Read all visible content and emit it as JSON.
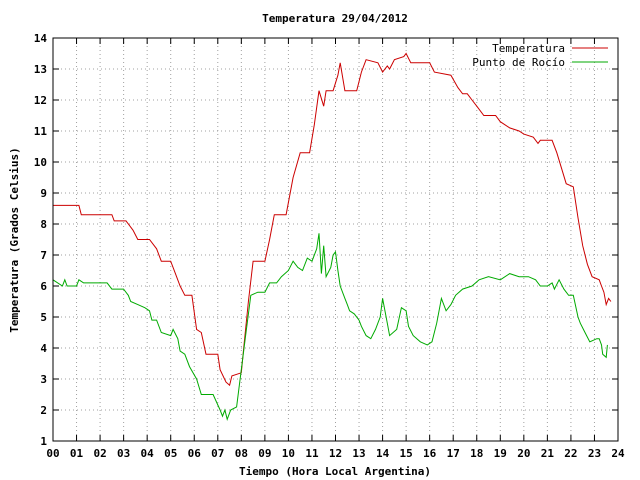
{
  "chart_data": {
    "type": "line",
    "title": "Temperatura 29/04/2012",
    "xlabel": "Tiempo (Hora Local Argentina)",
    "ylabel": "Temperatura (Grados Celsius)",
    "xlim": [
      0,
      24
    ],
    "ylim": [
      1,
      14
    ],
    "x_ticks": [
      "00",
      "01",
      "02",
      "03",
      "04",
      "05",
      "06",
      "07",
      "08",
      "09",
      "10",
      "11",
      "12",
      "13",
      "14",
      "15",
      "16",
      "17",
      "18",
      "19",
      "20",
      "21",
      "22",
      "23",
      "24"
    ],
    "y_ticks": [
      "1",
      "2",
      "3",
      "4",
      "5",
      "6",
      "7",
      "8",
      "9",
      "10",
      "11",
      "12",
      "13",
      "14"
    ],
    "grid": true,
    "legend": "top-right",
    "series": [
      {
        "name": "Temperatura",
        "color": "#cc0000",
        "points": [
          [
            0,
            8.6
          ],
          [
            1.1,
            8.6
          ],
          [
            1.2,
            8.3
          ],
          [
            2.5,
            8.3
          ],
          [
            2.6,
            8.1
          ],
          [
            3.1,
            8.1
          ],
          [
            3.4,
            7.8
          ],
          [
            3.6,
            7.5
          ],
          [
            4.1,
            7.5
          ],
          [
            4.4,
            7.2
          ],
          [
            4.6,
            6.8
          ],
          [
            5.0,
            6.8
          ],
          [
            5.2,
            6.4
          ],
          [
            5.4,
            6.0
          ],
          [
            5.6,
            5.7
          ],
          [
            5.9,
            5.7
          ],
          [
            6.1,
            4.6
          ],
          [
            6.3,
            4.5
          ],
          [
            6.5,
            3.8
          ],
          [
            7.0,
            3.8
          ],
          [
            7.1,
            3.3
          ],
          [
            7.35,
            2.9
          ],
          [
            7.5,
            2.8
          ],
          [
            7.6,
            3.1
          ],
          [
            8.0,
            3.2
          ],
          [
            8.1,
            4.0
          ],
          [
            8.3,
            5.5
          ],
          [
            8.5,
            6.8
          ],
          [
            9.0,
            6.8
          ],
          [
            9.2,
            7.5
          ],
          [
            9.4,
            8.3
          ],
          [
            9.9,
            8.3
          ],
          [
            10.2,
            9.5
          ],
          [
            10.5,
            10.3
          ],
          [
            10.9,
            10.3
          ],
          [
            11.1,
            11.2
          ],
          [
            11.3,
            12.3
          ],
          [
            11.5,
            11.8
          ],
          [
            11.6,
            12.3
          ],
          [
            11.9,
            12.3
          ],
          [
            12.1,
            12.8
          ],
          [
            12.2,
            13.2
          ],
          [
            12.4,
            12.3
          ],
          [
            12.9,
            12.3
          ],
          [
            13.1,
            12.9
          ],
          [
            13.3,
            13.3
          ],
          [
            13.8,
            13.2
          ],
          [
            14.0,
            12.9
          ],
          [
            14.2,
            13.1
          ],
          [
            14.3,
            13.0
          ],
          [
            14.5,
            13.3
          ],
          [
            14.9,
            13.4
          ],
          [
            15.0,
            13.5
          ],
          [
            15.2,
            13.2
          ],
          [
            16.0,
            13.2
          ],
          [
            16.2,
            12.9
          ],
          [
            16.9,
            12.8
          ],
          [
            17.2,
            12.4
          ],
          [
            17.4,
            12.2
          ],
          [
            17.6,
            12.2
          ],
          [
            17.8,
            12.0
          ],
          [
            18.0,
            11.8
          ],
          [
            18.3,
            11.5
          ],
          [
            18.8,
            11.5
          ],
          [
            19.0,
            11.3
          ],
          [
            19.4,
            11.1
          ],
          [
            19.8,
            11.0
          ],
          [
            20.0,
            10.9
          ],
          [
            20.4,
            10.8
          ],
          [
            20.6,
            10.6
          ],
          [
            20.7,
            10.7
          ],
          [
            21.2,
            10.7
          ],
          [
            21.4,
            10.3
          ],
          [
            21.6,
            9.8
          ],
          [
            21.8,
            9.3
          ],
          [
            22.1,
            9.2
          ],
          [
            22.3,
            8.2
          ],
          [
            22.5,
            7.3
          ],
          [
            22.7,
            6.7
          ],
          [
            22.9,
            6.3
          ],
          [
            23.2,
            6.2
          ],
          [
            23.3,
            6.0
          ],
          [
            23.4,
            5.8
          ],
          [
            23.5,
            5.4
          ],
          [
            23.6,
            5.6
          ],
          [
            23.7,
            5.5
          ]
        ]
      },
      {
        "name": "Punto de Rocío",
        "color": "#00aa00",
        "points": [
          [
            0,
            6.2
          ],
          [
            0.4,
            6.0
          ],
          [
            0.5,
            6.2
          ],
          [
            0.6,
            6.0
          ],
          [
            1.0,
            6.0
          ],
          [
            1.1,
            6.2
          ],
          [
            1.3,
            6.1
          ],
          [
            2.3,
            6.1
          ],
          [
            2.5,
            5.9
          ],
          [
            3.0,
            5.9
          ],
          [
            3.2,
            5.7
          ],
          [
            3.3,
            5.5
          ],
          [
            3.6,
            5.4
          ],
          [
            3.9,
            5.3
          ],
          [
            4.1,
            5.2
          ],
          [
            4.2,
            4.9
          ],
          [
            4.4,
            4.9
          ],
          [
            4.6,
            4.5
          ],
          [
            5.0,
            4.4
          ],
          [
            5.1,
            4.6
          ],
          [
            5.3,
            4.3
          ],
          [
            5.4,
            3.9
          ],
          [
            5.6,
            3.8
          ],
          [
            5.8,
            3.4
          ],
          [
            6.1,
            3.0
          ],
          [
            6.3,
            2.5
          ],
          [
            6.8,
            2.5
          ],
          [
            7.1,
            2.0
          ],
          [
            7.2,
            1.8
          ],
          [
            7.3,
            2.0
          ],
          [
            7.4,
            1.7
          ],
          [
            7.55,
            2.0
          ],
          [
            7.8,
            2.1
          ],
          [
            8.0,
            3.3
          ],
          [
            8.2,
            4.5
          ],
          [
            8.4,
            5.7
          ],
          [
            8.7,
            5.8
          ],
          [
            9.0,
            5.8
          ],
          [
            9.2,
            6.1
          ],
          [
            9.5,
            6.1
          ],
          [
            9.7,
            6.3
          ],
          [
            10.0,
            6.5
          ],
          [
            10.2,
            6.8
          ],
          [
            10.4,
            6.6
          ],
          [
            10.6,
            6.5
          ],
          [
            10.8,
            6.9
          ],
          [
            11.0,
            6.8
          ],
          [
            11.2,
            7.2
          ],
          [
            11.3,
            7.7
          ],
          [
            11.4,
            6.4
          ],
          [
            11.5,
            7.3
          ],
          [
            11.6,
            6.3
          ],
          [
            11.8,
            6.6
          ],
          [
            11.9,
            7.0
          ],
          [
            12.0,
            7.1
          ],
          [
            12.1,
            6.5
          ],
          [
            12.2,
            6.0
          ],
          [
            12.4,
            5.6
          ],
          [
            12.5,
            5.4
          ],
          [
            12.6,
            5.2
          ],
          [
            12.8,
            5.1
          ],
          [
            13.0,
            4.9
          ],
          [
            13.1,
            4.7
          ],
          [
            13.3,
            4.4
          ],
          [
            13.5,
            4.3
          ],
          [
            13.7,
            4.6
          ],
          [
            13.9,
            5.0
          ],
          [
            14.0,
            5.6
          ],
          [
            14.2,
            4.8
          ],
          [
            14.3,
            4.4
          ],
          [
            14.6,
            4.6
          ],
          [
            14.8,
            5.3
          ],
          [
            15.0,
            5.2
          ],
          [
            15.1,
            4.7
          ],
          [
            15.3,
            4.4
          ],
          [
            15.6,
            4.2
          ],
          [
            15.9,
            4.1
          ],
          [
            16.1,
            4.2
          ],
          [
            16.3,
            4.8
          ],
          [
            16.5,
            5.6
          ],
          [
            16.7,
            5.2
          ],
          [
            16.9,
            5.4
          ],
          [
            17.1,
            5.7
          ],
          [
            17.4,
            5.9
          ],
          [
            17.8,
            6.0
          ],
          [
            18.1,
            6.2
          ],
          [
            18.5,
            6.3
          ],
          [
            19.0,
            6.2
          ],
          [
            19.4,
            6.4
          ],
          [
            19.8,
            6.3
          ],
          [
            20.2,
            6.3
          ],
          [
            20.5,
            6.2
          ],
          [
            20.7,
            6.0
          ],
          [
            21.0,
            6.0
          ],
          [
            21.2,
            6.1
          ],
          [
            21.3,
            5.9
          ],
          [
            21.5,
            6.2
          ],
          [
            21.7,
            5.9
          ],
          [
            21.9,
            5.7
          ],
          [
            22.1,
            5.7
          ],
          [
            22.3,
            5.0
          ],
          [
            22.4,
            4.8
          ],
          [
            22.6,
            4.5
          ],
          [
            22.8,
            4.2
          ],
          [
            23.1,
            4.3
          ],
          [
            23.2,
            4.3
          ],
          [
            23.3,
            4.1
          ],
          [
            23.35,
            3.8
          ],
          [
            23.5,
            3.7
          ],
          [
            23.55,
            4.1
          ]
        ]
      }
    ]
  }
}
